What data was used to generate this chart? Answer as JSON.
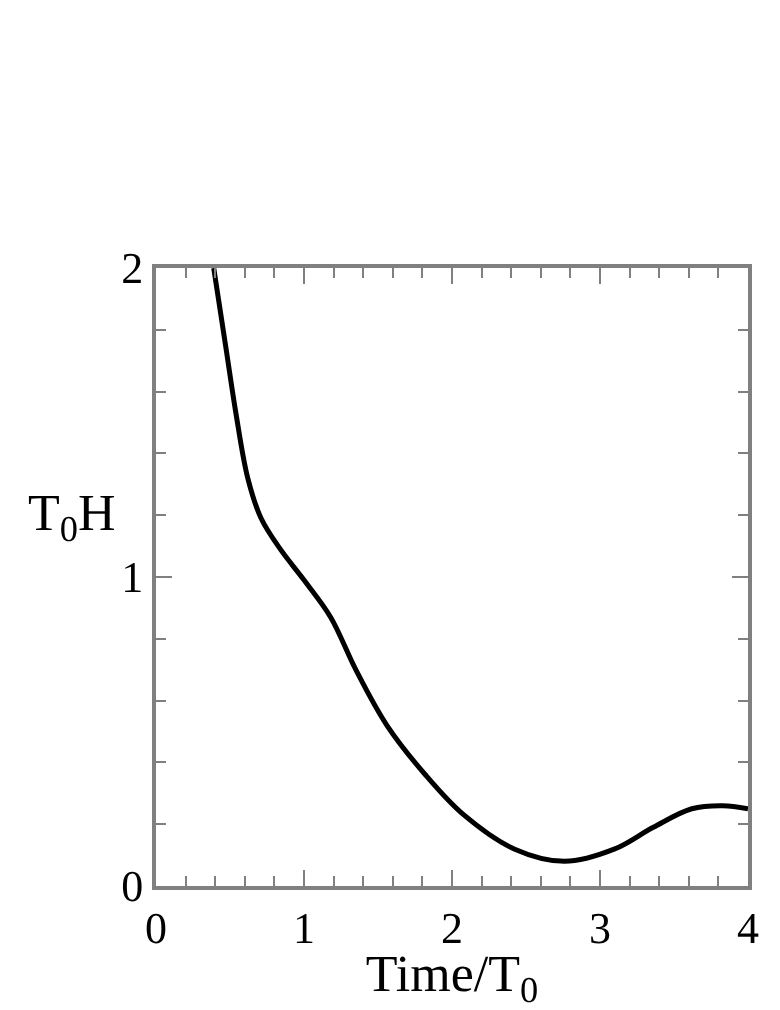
{
  "chart_data": {
    "type": "line",
    "xlabel": "Time/T$_{0}$",
    "ylabel": "T$_{0}$H",
    "xlim": [
      0,
      4
    ],
    "ylim": [
      0,
      2
    ],
    "xticks": [
      0,
      1,
      2,
      3,
      4
    ],
    "yticks": [
      0,
      1,
      2
    ],
    "marker": "none",
    "line_style": "solid",
    "series": [
      {
        "color": "#000000",
        "x": [
          0.39,
          0.47,
          0.54,
          0.62,
          0.71,
          0.84,
          1.0,
          1.18,
          1.35,
          1.56,
          1.82,
          2.08,
          2.42,
          2.76,
          3.1,
          3.36,
          3.62,
          3.83,
          4.0
        ],
        "values": [
          2.0,
          1.75,
          1.53,
          1.32,
          1.19,
          1.09,
          0.99,
          0.87,
          0.7,
          0.52,
          0.36,
          0.23,
          0.12,
          0.08,
          0.12,
          0.19,
          0.25,
          0.26,
          0.25
        ]
      }
    ]
  }
}
